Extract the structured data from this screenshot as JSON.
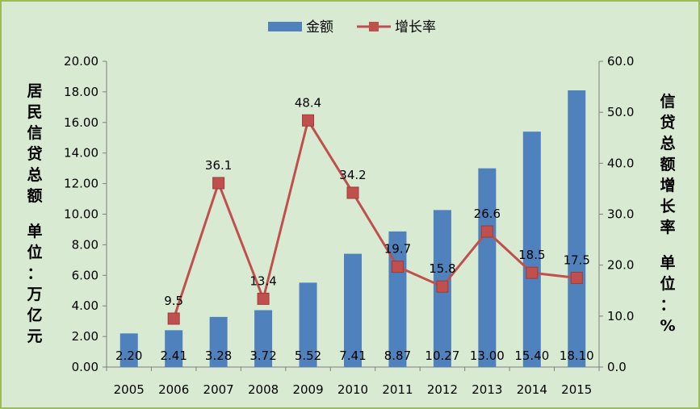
{
  "chart_data": {
    "type": "bar+line",
    "categories": [
      "2005",
      "2006",
      "2007",
      "2008",
      "2009",
      "2010",
      "2011",
      "2012",
      "2013",
      "2014",
      "2015"
    ],
    "series": [
      {
        "name": "金额",
        "type": "bar",
        "axis": "left",
        "color": "#4f81bd",
        "values": [
          2.2,
          2.41,
          3.28,
          3.72,
          5.52,
          7.41,
          8.87,
          10.27,
          13.0,
          15.4,
          18.1
        ],
        "labels": [
          "2.20",
          "2.41",
          "3.28",
          "3.72",
          "5.52",
          "7.41",
          "8.87",
          "10.27",
          "13.00",
          "15.40",
          "18.10"
        ]
      },
      {
        "name": "增长率",
        "type": "line",
        "axis": "right",
        "color": "#c0504d",
        "x": [
          "2006",
          "2007",
          "2008",
          "2009",
          "2010",
          "2011",
          "2012",
          "2013",
          "2014",
          "2015"
        ],
        "values": [
          9.5,
          36.1,
          13.4,
          48.4,
          34.2,
          19.7,
          15.8,
          26.6,
          18.5,
          17.5
        ],
        "labels": [
          "9.5",
          "36.1",
          "13.4",
          "48.4",
          "34.2",
          "19.7",
          "15.8",
          "26.6",
          "18.5",
          "17.5"
        ]
      }
    ],
    "ylabel": "居民信贷总额 单位：万亿元",
    "y2label": "信贷总额增长率 单位：%",
    "ylim": [
      0,
      20
    ],
    "y2lim": [
      0,
      60
    ],
    "yticks": [
      "0.00",
      "2.00",
      "4.00",
      "6.00",
      "8.00",
      "10.00",
      "12.00",
      "14.00",
      "16.00",
      "18.00",
      "20.00"
    ],
    "y2ticks": [
      "0.0",
      "10.0",
      "20.0",
      "30.0",
      "40.0",
      "50.0",
      "60.0"
    ],
    "grid": false,
    "legend": "top-center"
  }
}
